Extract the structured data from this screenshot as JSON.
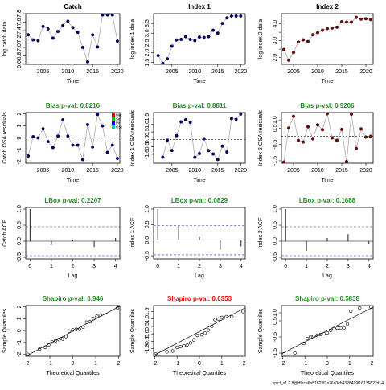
{
  "figure": {
    "footer": "spict_v1.2.8@dfece6a51823f1a26d3cb4328499f16136822d14"
  },
  "colors": {
    "pass": "#228B22",
    "fail": "#FF0000",
    "point_fill": "#000080",
    "index2_point_fill": "#800000",
    "line": "#aaaaaa",
    "bias_line": "#000000"
  },
  "legend": {
    "items": [
      "Mat",
      "Sel",
      "Pit",
      "QSt"
    ],
    "colors": [
      "#FF0000",
      "#00CC00",
      "#0000FF",
      "#00CCCC"
    ]
  },
  "chart_data": [
    {
      "id": "catch_data",
      "type": "line",
      "title": "Catch",
      "xlabel": "Time",
      "ylabel": "log catch data",
      "xlim": [
        2001.5,
        2020.5
      ],
      "ylim": [
        6.6,
        7.8
      ],
      "xticks": [
        2005,
        2010,
        2015,
        2020
      ],
      "yticks": [
        6.6,
        6.8,
        7.0,
        7.2,
        7.4,
        7.6,
        7.8
      ],
      "ytick_labels": [
        "6.6",
        "6.8",
        "7.0",
        "7.2",
        "7.4",
        "7.6",
        "7.8"
      ],
      "vline": 2002,
      "x": [
        2001,
        2002,
        2003,
        2004,
        2005,
        2006,
        2007,
        2008,
        2009,
        2010,
        2011,
        2012,
        2013,
        2014,
        2015,
        2016,
        2017,
        2018,
        2019,
        2020
      ],
      "y": [
        7.18,
        7.3,
        7.18,
        7.16,
        7.5,
        7.44,
        7.22,
        7.38,
        7.52,
        7.62,
        7.47,
        7.36,
        7.0,
        6.66,
        7.3,
        7.01,
        7.77,
        7.77,
        7.77,
        7.15
      ]
    },
    {
      "id": "index1_data",
      "type": "line",
      "title": "Index 1",
      "xlabel": "Time",
      "ylabel": "log index 1 data",
      "xlim": [
        2001,
        2021
      ],
      "ylim": [
        1.4,
        4.0
      ],
      "xticks": [
        2005,
        2010,
        2015,
        2020
      ],
      "yticks": [
        1.5,
        2.0,
        2.5,
        3.0,
        3.5
      ],
      "ytick_labels": [
        "1.5",
        "2.0",
        "2.5",
        "3.0",
        "3.5"
      ],
      "vline": 2002,
      "x": [
        2002,
        2003,
        2004,
        2005,
        2006,
        2007,
        2008,
        2009,
        2010,
        2011,
        2012,
        2013,
        2014,
        2015,
        2016,
        2017,
        2018,
        2019,
        2020
      ],
      "y": [
        1.85,
        1.45,
        1.68,
        2.33,
        2.65,
        2.68,
        2.82,
        2.68,
        2.62,
        2.8,
        2.78,
        2.82,
        3.15,
        3.0,
        3.5,
        3.78,
        3.88,
        3.88,
        3.88
      ]
    },
    {
      "id": "index2_data",
      "type": "line",
      "title": "Index 2",
      "xlabel": "Time",
      "ylabel": "log index 2 data",
      "xlim": [
        2002.5,
        2021.5
      ],
      "ylim": [
        1.6,
        4.6
      ],
      "xticks": [
        2005,
        2010,
        2015,
        2020
      ],
      "yticks": [
        2.0,
        2.5,
        3.0,
        3.5,
        4.0
      ],
      "ytick_labels": [
        "2.0",
        "",
        "3.0",
        "",
        "4.0"
      ],
      "vline": 2003,
      "x": [
        2003,
        2004,
        2005,
        2006,
        2007,
        2008,
        2009,
        2010,
        2011,
        2012,
        2013,
        2014,
        2015,
        2016,
        2017,
        2018,
        2019,
        2020,
        2021
      ],
      "y": [
        2.48,
        1.85,
        2.3,
        2.92,
        3.05,
        2.95,
        3.35,
        3.48,
        3.62,
        3.72,
        3.75,
        3.8,
        4.12,
        4.1,
        4.1,
        4.38,
        4.28,
        4.3,
        4.25
      ]
    },
    {
      "id": "catch_osa",
      "type": "scatter",
      "title": "Bias p-val: 0.8216",
      "title_status": "pass",
      "xlabel": "Time",
      "ylabel": "Catch OSA residuals",
      "xlim": [
        2001.5,
        2020.5
      ],
      "ylim": [
        -2.1,
        2.1
      ],
      "xticks": [
        2005,
        2010,
        2015,
        2020
      ],
      "yticks": [
        -2,
        -1,
        0,
        1,
        2
      ],
      "ytick_labels": [
        "-2",
        "-1",
        "0",
        "1",
        "2"
      ],
      "hline": 0,
      "show_legend": true,
      "x": [
        2002,
        2003,
        2004,
        2005,
        2006,
        2007,
        2008,
        2009,
        2010,
        2011,
        2012,
        2013,
        2014,
        2015,
        2016,
        2017,
        2018,
        2019,
        2020
      ],
      "y": [
        -1.5,
        0.1,
        0.0,
        0.75,
        -0.3,
        -0.8,
        0.15,
        1.5,
        0.15,
        -0.6,
        -0.6,
        -1.8,
        1.1,
        -0.75,
        1.95,
        1.0,
        -1.2,
        -0.6,
        -1.7
      ]
    },
    {
      "id": "index1_osa",
      "type": "scatter",
      "title": "Bias p-val: 0.8811",
      "title_status": "pass",
      "xlabel": "Time",
      "ylabel": "Index 1 OSA residuals",
      "xlim": [
        2001,
        2021
      ],
      "ylim": [
        -1.6,
        1.8
      ],
      "xticks": [
        2005,
        2010,
        2015,
        2020
      ],
      "yticks": [
        -1.0,
        -0.5,
        0.0,
        0.5,
        1.0,
        1.5
      ],
      "ytick_labels": [
        "-1.0",
        "-0.5",
        "0.0",
        "0.5",
        "1.0",
        "1.5"
      ],
      "hline": 0,
      "show_legend": false,
      "x": [
        2003,
        2004,
        2005,
        2006,
        2007,
        2008,
        2009,
        2010,
        2011,
        2012,
        2013,
        2014,
        2015,
        2016,
        2017,
        2018,
        2019,
        2020
      ],
      "y": [
        -1.2,
        -0.05,
        -0.75,
        0.25,
        1.18,
        1.32,
        1.15,
        -1.2,
        -0.95,
        0.05,
        -0.75,
        -0.98,
        -1.35,
        -0.45,
        -0.85,
        1.4,
        1.35,
        1.7
      ]
    },
    {
      "id": "index2_osa",
      "type": "scatter",
      "title": "Bias p-val: 0.9206",
      "title_status": "pass",
      "xlabel": "Time",
      "ylabel": "Index 2 OSA residuals",
      "xlim": [
        2002.5,
        2021.5
      ],
      "ylim": [
        -1.65,
        1.45
      ],
      "xticks": [
        2005,
        2010,
        2015,
        2020
      ],
      "yticks": [
        -1.5,
        -0.5,
        0.5,
        1.0
      ],
      "ytick_labels": [
        "-1.5",
        "-0.5",
        "0.5",
        "1.0"
      ],
      "hline": 0,
      "show_legend": false,
      "x": [
        2003,
        2004,
        2005,
        2006,
        2007,
        2008,
        2009,
        2010,
        2011,
        2012,
        2013,
        2014,
        2015,
        2016,
        2017,
        2018,
        2019,
        2020,
        2021
      ],
      "y": [
        -1.58,
        0.5,
        1.22,
        -0.25,
        -0.35,
        0.58,
        -0.15,
        0.7,
        0.4,
        1.38,
        -0.1,
        -0.25,
        0.42,
        -1.55,
        1.35,
        -0.75,
        0.45,
        -0.05,
        0.0
      ]
    },
    {
      "id": "catch_acf",
      "type": "bar",
      "title": "LBox p-val: 0.2207",
      "title_status": "pass",
      "xlabel": "Lag",
      "ylabel": "Catch ACF",
      "xlim": [
        -0.2,
        4.2
      ],
      "ylim": [
        -0.55,
        1.05
      ],
      "xticks": [
        0,
        1,
        2,
        3,
        4
      ],
      "yticks": [
        -0.5,
        0.0,
        0.5,
        1.0
      ],
      "ytick_labels": [
        "-0.5",
        "0.0",
        "0.5",
        "1.0"
      ],
      "conf": 0.45,
      "lags": [
        0,
        1,
        2,
        3,
        4
      ],
      "values": [
        1.0,
        -0.12,
        0.05,
        -0.18,
        0.1
      ]
    },
    {
      "id": "index1_acf",
      "type": "bar",
      "title": "LBox p-val: 0.0829",
      "title_status": "pass",
      "xlabel": "Lag",
      "ylabel": "Index 1 ACF",
      "xlim": [
        -0.2,
        4.2
      ],
      "ylim": [
        -0.6,
        1.05
      ],
      "xticks": [
        0,
        1,
        2,
        3,
        4
      ],
      "yticks": [
        -0.5,
        0.0,
        0.5,
        1.0
      ],
      "ytick_labels": [
        "-0.5",
        "0.0",
        "0.5",
        "1.0"
      ],
      "conf": 0.47,
      "lags": [
        0,
        1,
        2,
        3,
        4
      ],
      "values": [
        1.0,
        0.45,
        0.1,
        -0.3,
        -0.2
      ]
    },
    {
      "id": "index2_acf",
      "type": "bar",
      "title": "LBox p-val: 0.1688",
      "title_status": "pass",
      "xlabel": "Lag",
      "ylabel": "Index 2 ACF",
      "xlim": [
        -0.2,
        4.2
      ],
      "ylim": [
        -0.55,
        1.05
      ],
      "xticks": [
        0,
        1,
        2,
        3,
        4
      ],
      "yticks": [
        -0.5,
        0.0,
        0.5,
        1.0
      ],
      "ytick_labels": [
        "-0.5",
        "0.0",
        "0.5",
        "1.0"
      ],
      "conf": 0.45,
      "lags": [
        0,
        1,
        2,
        3,
        4
      ],
      "values": [
        1.0,
        -0.3,
        0.1,
        0.22,
        -0.1
      ]
    },
    {
      "id": "catch_qq",
      "type": "scatter",
      "title": "Shapiro p-val: 0.946",
      "title_status": "pass",
      "xlabel": "Theoretical Quantiles",
      "ylabel": "Sample Quantiles",
      "xlim": [
        -2.05,
        2.05
      ],
      "ylim": [
        -2.15,
        2.1
      ],
      "xticks": [
        -2,
        -1,
        0,
        1,
        2
      ],
      "yticks": [
        -2,
        -1,
        0,
        1,
        2
      ],
      "ytick_labels": [
        "-2",
        "-1",
        "0",
        "1",
        "2"
      ],
      "qq_line": [
        [
          -2.05,
          -2.15
        ],
        [
          2.05,
          2.05
        ]
      ],
      "x": [
        -1.95,
        -1.45,
        -1.2,
        -1.05,
        -0.9,
        -0.75,
        -0.6,
        -0.45,
        -0.3,
        -0.15,
        0.0,
        0.15,
        0.3,
        0.45,
        0.6,
        0.75,
        0.9,
        1.05,
        1.2,
        1.95
      ],
      "y": [
        -2.0,
        -1.55,
        -1.4,
        -1.2,
        -0.95,
        -0.85,
        -0.75,
        -0.7,
        -0.5,
        -0.05,
        0.05,
        0.1,
        0.1,
        0.3,
        0.7,
        0.75,
        1.0,
        1.2,
        1.3,
        1.9
      ]
    },
    {
      "id": "index1_qq",
      "type": "scatter",
      "title": "Shapiro p-val: 0.0353",
      "title_status": "fail",
      "xlabel": "Theoretical Quantiles",
      "ylabel": "Sample Quantiles",
      "xlim": [
        -2.05,
        2.05
      ],
      "ylim": [
        -1.5,
        1.9
      ],
      "xticks": [
        -2,
        -1,
        0,
        1,
        2
      ],
      "yticks": [
        -1.0,
        -0.5,
        0.0,
        0.5,
        1.0,
        1.5
      ],
      "ytick_labels": [
        "-1.0",
        "-0.5",
        "0.0",
        "0.5",
        "1.0",
        "1.5"
      ],
      "qq_line": [
        [
          -2.05,
          -1.45
        ],
        [
          2.05,
          1.75
        ]
      ],
      "x": [
        -1.95,
        -1.45,
        -1.2,
        -1.0,
        -0.85,
        -0.7,
        -0.55,
        -0.4,
        -0.25,
        -0.1,
        0.1,
        0.25,
        0.4,
        0.55,
        0.7,
        0.85,
        1.0,
        1.2,
        1.45,
        1.95
      ],
      "y": [
        -1.35,
        -1.2,
        -1.15,
        -0.9,
        -0.85,
        -0.8,
        -0.75,
        -0.6,
        -0.4,
        -0.1,
        -0.05,
        0.05,
        0.25,
        0.5,
        0.95,
        1.0,
        1.1,
        1.15,
        1.15,
        1.5
      ]
    },
    {
      "id": "index2_qq",
      "type": "scatter",
      "title": "Shapiro p-val: 0.5838",
      "title_status": "pass",
      "xlabel": "Theoretical Quantiles",
      "ylabel": "Sample Quantiles",
      "xlim": [
        -2.05,
        2.05
      ],
      "ylim": [
        -1.7,
        1.45
      ],
      "xticks": [
        -2,
        -1,
        0,
        1,
        2
      ],
      "yticks": [
        -1.5,
        -0.5,
        0.5,
        1.0
      ],
      "ytick_labels": [
        "-1.5",
        "-0.5",
        "0.5",
        "1.0"
      ],
      "qq_line": [
        [
          -2.05,
          -1.55
        ],
        [
          2.05,
          1.35
        ]
      ],
      "x": [
        -1.95,
        -1.45,
        -1.05,
        -0.9,
        -0.75,
        -0.6,
        -0.45,
        -0.3,
        -0.15,
        0.0,
        0.15,
        0.3,
        0.45,
        0.6,
        0.75,
        0.9,
        1.05,
        1.45,
        1.95
      ],
      "y": [
        -1.55,
        -1.5,
        -0.9,
        -0.6,
        -0.5,
        -0.45,
        -0.4,
        -0.35,
        -0.3,
        -0.25,
        -0.1,
        0.0,
        0.05,
        0.05,
        0.05,
        0.3,
        1.1,
        1.3,
        1.35
      ]
    }
  ]
}
